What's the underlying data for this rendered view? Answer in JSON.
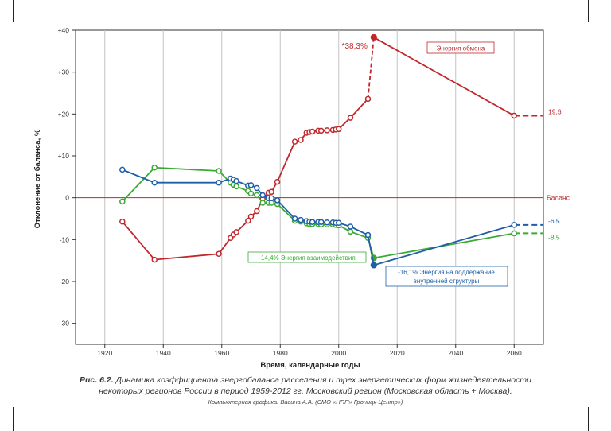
{
  "chart_data": {
    "type": "line",
    "xlabel": "Время, календарные годы",
    "ylabel": "Отклонение от баланса, %",
    "xlim": [
      1910,
      2070
    ],
    "ylim": [
      -35,
      40
    ],
    "x_ticks": [
      {
        "value": 1920,
        "label": "1920"
      },
      {
        "value": 1940,
        "label": "1940"
      },
      {
        "value": 1960,
        "label": "1960"
      },
      {
        "value": 1980,
        "label": "1980"
      },
      {
        "value": 2000,
        "label": "2000"
      },
      {
        "value": 2020,
        "label": "2020"
      },
      {
        "value": 2040,
        "label": "2040"
      },
      {
        "value": 2060,
        "label": "2060"
      }
    ],
    "y_ticks": [
      {
        "value": 40,
        "label": "+40"
      },
      {
        "value": 30,
        "label": "+30"
      },
      {
        "value": 20,
        "label": "+20"
      },
      {
        "value": 10,
        "label": "+10"
      },
      {
        "value": 0,
        "label": "0"
      },
      {
        "value": -10,
        "label": "-10"
      },
      {
        "value": -20,
        "label": "-20"
      },
      {
        "value": -30,
        "label": "-30"
      }
    ],
    "grid": {
      "vertical": true,
      "horizontal": false
    },
    "series": [
      {
        "name": "Энергия обмена",
        "color": "#c0282d",
        "points": [
          [
            1926,
            -5.7
          ],
          [
            1937,
            -14.8
          ],
          [
            1959,
            -13.4
          ],
          [
            1963,
            -9.6
          ],
          [
            1964,
            -8.8
          ],
          [
            1965,
            -8.2
          ],
          [
            1969,
            -5.5
          ],
          [
            1970,
            -4.5
          ],
          [
            1972,
            -3.2
          ],
          [
            1974,
            -0.3
          ],
          [
            1976,
            1.2
          ],
          [
            1977,
            1.4
          ],
          [
            1979,
            3.8
          ],
          [
            1985,
            13.4
          ],
          [
            1987,
            13.8
          ],
          [
            1989,
            15.5
          ],
          [
            1990,
            15.7
          ],
          [
            1991,
            15.8
          ],
          [
            1993,
            16.0
          ],
          [
            1994,
            16.0
          ],
          [
            1996,
            16.1
          ],
          [
            1998,
            16.2
          ],
          [
            1999,
            16.3
          ],
          [
            2000,
            16.4
          ],
          [
            2004,
            19.1
          ],
          [
            2010,
            23.6
          ]
        ],
        "dashed_to": [
          2012,
          38.3
        ],
        "tail": [
          [
            2012,
            38.3
          ],
          [
            2060,
            19.6
          ]
        ],
        "extension": [
          [
            2060,
            19.6
          ],
          [
            2070,
            19.6
          ]
        ],
        "end_label": "19,6",
        "peak_label": "*38,3%"
      },
      {
        "name": "Энергия взаимодействия",
        "color": "#3aaa35",
        "points": [
          [
            1926,
            -0.9
          ],
          [
            1937,
            7.2
          ],
          [
            1959,
            6.4
          ],
          [
            1963,
            3.6
          ],
          [
            1964,
            3.1
          ],
          [
            1965,
            2.7
          ],
          [
            1969,
            1.6
          ],
          [
            1970,
            1.0
          ],
          [
            1972,
            0.6
          ],
          [
            1974,
            -1.2
          ],
          [
            1976,
            -1.2
          ],
          [
            1977,
            -1.2
          ],
          [
            1979,
            -1.5
          ],
          [
            1985,
            -5.5
          ],
          [
            1987,
            -5.7
          ],
          [
            1989,
            -6.1
          ],
          [
            1990,
            -6.3
          ],
          [
            1991,
            -6.3
          ],
          [
            1993,
            -6.3
          ],
          [
            1994,
            -6.4
          ],
          [
            1996,
            -6.4
          ],
          [
            1998,
            -6.4
          ],
          [
            1999,
            -6.5
          ],
          [
            2000,
            -6.6
          ],
          [
            2004,
            -8.1
          ],
          [
            2010,
            -9.6
          ]
        ],
        "tail": [
          [
            2010,
            -9.6
          ],
          [
            2012,
            -14.4
          ],
          [
            2060,
            -8.5
          ]
        ],
        "extension": [
          [
            2060,
            -8.5
          ],
          [
            2070,
            -8.5
          ]
        ],
        "end_label": "-8,5",
        "low_label": "-14,4% Энергия взаимодействия"
      },
      {
        "name": "Энергия на поддержание внутренней структуры",
        "color": "#1f5fa8",
        "points": [
          [
            1926,
            6.7
          ],
          [
            1937,
            3.6
          ],
          [
            1959,
            3.6
          ],
          [
            1963,
            4.6
          ],
          [
            1964,
            4.3
          ],
          [
            1965,
            4.0
          ],
          [
            1969,
            2.9
          ],
          [
            1970,
            3.0
          ],
          [
            1972,
            2.3
          ],
          [
            1974,
            0.6
          ],
          [
            1976,
            -0.1
          ],
          [
            1977,
            -0.1
          ],
          [
            1979,
            -0.6
          ],
          [
            1985,
            -5.0
          ],
          [
            1987,
            -5.3
          ],
          [
            1989,
            -5.6
          ],
          [
            1990,
            -5.7
          ],
          [
            1991,
            -5.8
          ],
          [
            1993,
            -5.8
          ],
          [
            1994,
            -5.8
          ],
          [
            1996,
            -5.9
          ],
          [
            1998,
            -5.9
          ],
          [
            1999,
            -6.0
          ],
          [
            2000,
            -6.0
          ],
          [
            2004,
            -6.9
          ],
          [
            2010,
            -8.9
          ]
        ],
        "tail": [
          [
            2010,
            -8.9
          ],
          [
            2012,
            -16.1
          ],
          [
            2060,
            -6.5
          ]
        ],
        "extension": [
          [
            2060,
            -6.5
          ],
          [
            2070,
            -6.5
          ]
        ],
        "end_label": "-6,5",
        "low_label_line1": "-16,1% Энергия на поддержание",
        "low_label_line2": "внутренней структуры"
      }
    ],
    "baseline": {
      "value": 0,
      "label": "Баланс",
      "color": "#c0282d"
    },
    "legend_box": {
      "text": "Энергия обмена",
      "color": "#c0282d"
    }
  },
  "caption": {
    "prefix": "Рис. 6.2.",
    "line1": "Динамика коэффициента энергобаланса расселения и трех энергетических форм жизнедеятельности",
    "line2": "некоторых регионов России в период 1959-2012 гг. Московский регион (Московская область + Москва).",
    "line3": "Компьютерная графика: Васина А.А. (СМО «НПП» Гроницк-Центр»)"
  }
}
